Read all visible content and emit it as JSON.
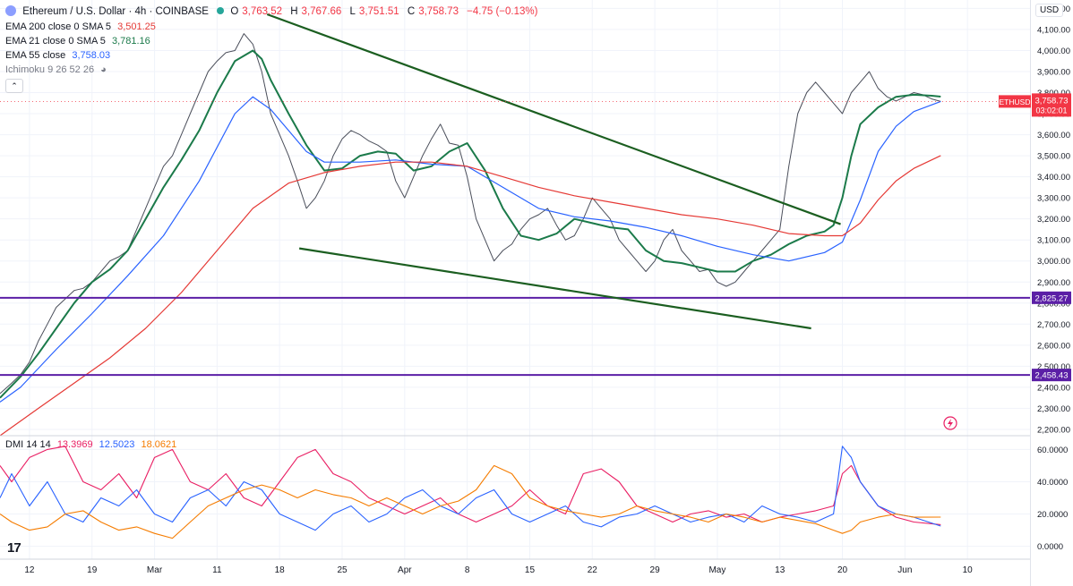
{
  "header": {
    "symbol": "Ethereum / U.S. Dollar · 4h · COINBASE",
    "open_label": "O",
    "open": "3,763.52",
    "high_label": "H",
    "high": "3,767.66",
    "low_label": "L",
    "low": "3,751.51",
    "close_label": "C",
    "close": "3,758.73",
    "change": "−4.75 (−0.13%)"
  },
  "indicators": {
    "ema200": {
      "label": "EMA 200 close 0 SMA 5",
      "value": "3,501.25",
      "color": "#e53935"
    },
    "ema21": {
      "label": "EMA 21 close 0 SMA 5",
      "value": "3,781.16",
      "color": "#1b7a4a"
    },
    "ema55": {
      "label": "EMA 55 close",
      "value": "3,758.03",
      "color": "#2962ff"
    },
    "ichimoku": {
      "label": "Ichimoku 9 26 52 26"
    }
  },
  "dmi": {
    "label": "DMI 14 14",
    "plus": "13.3969",
    "minus": "12.5023",
    "adx": "18.0621",
    "colors": {
      "plus": "#e91e63",
      "minus": "#2962ff",
      "adx": "#f57c00"
    }
  },
  "currency": "USD",
  "price_tag": {
    "symbol": "ETHUSD",
    "price": "3,758.73",
    "countdown": "03:02:01",
    "color": "#f23645"
  },
  "level_tags": [
    "2,825.27",
    "2,458.43"
  ],
  "level_color": "#5b1fa6",
  "chart_data": [
    {
      "type": "line",
      "title": "Ethereum / U.S. Dollar · 4h · COINBASE",
      "y_axis_labels": [
        "4,200.00",
        "4,100.00",
        "4,000.00",
        "3,900.00",
        "3,800.00",
        "3,700.00",
        "3,600.00",
        "3,500.00",
        "3,400.00",
        "3,300.00",
        "3,200.00",
        "3,100.00",
        "3,000.00",
        "2,900.00",
        "2,800.00",
        "2,700.00",
        "2,600.00",
        "2,500.00",
        "2,400.00",
        "2,300.00",
        "2,200.00"
      ],
      "y_ticks": [
        4200,
        4100,
        4000,
        3900,
        3800,
        3700,
        3600,
        3500,
        3400,
        3300,
        3200,
        3100,
        3000,
        2900,
        2800,
        2700,
        2600,
        2500,
        2400,
        2300,
        2200
      ],
      "ylim": [
        2170,
        4240
      ],
      "x_labels": [
        "12",
        "19",
        "Mar",
        "11",
        "18",
        "25",
        "Apr",
        "8",
        "15",
        "22",
        "29",
        "May",
        "13",
        "20",
        "Jun",
        "10"
      ],
      "x_ticks": [
        11,
        18,
        25,
        32,
        39,
        46,
        53,
        60,
        67,
        74,
        81,
        88,
        95,
        102,
        109,
        116
      ],
      "xlim": [
        7.7,
        123
      ],
      "horizontal_levels": [
        2825.27,
        2458.43
      ],
      "trendlines": [
        {
          "from": [
            37.6,
            4172
          ],
          "to": [
            101.8,
            3175
          ]
        },
        {
          "from": [
            41.2,
            3060
          ],
          "to": [
            98.5,
            2680
          ]
        }
      ],
      "series": [
        {
          "name": "close",
          "x": [
            7.7,
            9,
            10,
            11,
            12,
            13,
            14,
            15,
            16,
            17,
            18,
            19,
            20,
            21,
            22,
            23,
            24,
            25,
            26,
            27,
            28,
            29,
            30,
            31,
            32,
            33,
            34,
            35,
            36,
            37,
            38,
            39,
            40,
            41,
            42,
            43,
            44,
            45,
            46,
            47,
            48,
            49,
            50,
            51,
            52,
            53,
            54,
            55,
            56,
            57,
            58,
            59,
            60,
            61,
            62,
            63,
            64,
            65,
            66,
            67,
            68,
            69,
            70,
            71,
            72,
            73,
            74,
            75,
            76,
            77,
            78,
            79,
            80,
            81,
            82,
            83,
            84,
            85,
            86,
            87,
            88,
            89,
            90,
            91,
            92,
            93,
            94,
            95,
            96,
            97,
            98,
            99,
            100,
            101,
            102,
            103,
            104,
            105,
            106,
            107,
            108,
            109,
            110,
            111,
            112,
            113
          ],
          "y": [
            2370,
            2420,
            2460,
            2520,
            2620,
            2700,
            2780,
            2820,
            2860,
            2870,
            2900,
            2950,
            3000,
            3020,
            3050,
            3150,
            3250,
            3350,
            3450,
            3500,
            3600,
            3700,
            3800,
            3900,
            3950,
            3990,
            4000,
            4080,
            4030,
            3900,
            3700,
            3600,
            3500,
            3380,
            3250,
            3300,
            3380,
            3500,
            3580,
            3620,
            3600,
            3570,
            3550,
            3520,
            3380,
            3300,
            3400,
            3500,
            3580,
            3650,
            3560,
            3550,
            3400,
            3200,
            3100,
            3000,
            3050,
            3080,
            3150,
            3200,
            3220,
            3250,
            3170,
            3100,
            3120,
            3200,
            3300,
            3250,
            3200,
            3100,
            3050,
            3000,
            2950,
            3000,
            3100,
            3150,
            3050,
            3000,
            2950,
            2960,
            2900,
            2880,
            2900,
            2950,
            3000,
            3050,
            3100,
            3150,
            3450,
            3700,
            3800,
            3850,
            3800,
            3750,
            3700,
            3800,
            3850,
            3900,
            3820,
            3780,
            3760,
            3780,
            3800,
            3790,
            3770,
            3758
          ]
        },
        {
          "name": "EMA 21",
          "x": [
            7.7,
            10,
            12,
            14,
            16,
            18,
            20,
            22,
            24,
            26,
            28,
            30,
            32,
            34,
            36,
            37,
            38,
            40,
            42,
            44,
            46,
            48,
            50,
            52,
            54,
            56,
            58,
            60,
            62,
            64,
            66,
            68,
            70,
            72,
            74,
            76,
            78,
            80,
            82,
            84,
            86,
            88,
            90,
            92,
            94,
            96,
            98,
            100,
            101,
            102,
            103,
            104,
            106,
            108,
            110,
            112,
            113
          ],
          "y": [
            2350,
            2450,
            2560,
            2680,
            2800,
            2900,
            2960,
            3050,
            3200,
            3350,
            3480,
            3620,
            3800,
            3950,
            4000,
            3960,
            3860,
            3700,
            3550,
            3430,
            3440,
            3500,
            3520,
            3510,
            3430,
            3450,
            3520,
            3560,
            3430,
            3250,
            3120,
            3100,
            3130,
            3200,
            3180,
            3160,
            3150,
            3050,
            3000,
            2990,
            2970,
            2950,
            2950,
            3000,
            3030,
            3080,
            3120,
            3140,
            3170,
            3300,
            3500,
            3650,
            3730,
            3780,
            3790,
            3785,
            3781
          ]
        },
        {
          "name": "EMA 55",
          "x": [
            7.7,
            10,
            14,
            18,
            22,
            26,
            30,
            34,
            36,
            38,
            40,
            42,
            44,
            48,
            52,
            56,
            60,
            64,
            68,
            72,
            76,
            80,
            84,
            88,
            92,
            96,
            100,
            102,
            104,
            106,
            108,
            110,
            113
          ],
          "y": [
            2330,
            2400,
            2580,
            2750,
            2930,
            3120,
            3380,
            3700,
            3780,
            3720,
            3620,
            3520,
            3470,
            3470,
            3480,
            3460,
            3450,
            3350,
            3250,
            3210,
            3190,
            3160,
            3120,
            3070,
            3030,
            3000,
            3040,
            3090,
            3290,
            3520,
            3640,
            3710,
            3758
          ]
        },
        {
          "name": "EMA 200",
          "x": [
            7.7,
            12,
            16,
            20,
            24,
            28,
            32,
            36,
            40,
            44,
            48,
            52,
            56,
            60,
            64,
            68,
            72,
            76,
            80,
            84,
            88,
            92,
            96,
            100,
            102,
            104,
            106,
            108,
            110,
            113
          ],
          "y": [
            2170,
            2300,
            2420,
            2540,
            2680,
            2850,
            3050,
            3250,
            3370,
            3420,
            3450,
            3470,
            3470,
            3450,
            3400,
            3350,
            3310,
            3280,
            3250,
            3220,
            3200,
            3170,
            3130,
            3120,
            3120,
            3180,
            3290,
            3380,
            3440,
            3501
          ]
        }
      ]
    },
    {
      "type": "line",
      "title": "DMI 14 14",
      "y_axis_labels": [
        "60.0000",
        "40.0000",
        "20.0000",
        "0.0000"
      ],
      "y_ticks": [
        60,
        40,
        20,
        0
      ],
      "ylim": [
        -8,
        68
      ],
      "series": [
        {
          "name": "+DI",
          "x": [
            7.7,
            9,
            11,
            13,
            15,
            17,
            19,
            21,
            23,
            25,
            27,
            29,
            31,
            33,
            35,
            37,
            39,
            41,
            43,
            45,
            47,
            49,
            51,
            53,
            55,
            57,
            59,
            61,
            63,
            65,
            67,
            69,
            71,
            73,
            75,
            77,
            79,
            81,
            83,
            85,
            87,
            89,
            91,
            93,
            95,
            97,
            99,
            101,
            102,
            103,
            104,
            106,
            108,
            110,
            113
          ],
          "y": [
            50,
            40,
            55,
            60,
            62,
            40,
            35,
            45,
            30,
            55,
            60,
            40,
            35,
            45,
            30,
            25,
            40,
            55,
            60,
            45,
            40,
            30,
            25,
            20,
            25,
            30,
            20,
            15,
            20,
            25,
            35,
            25,
            20,
            45,
            48,
            40,
            25,
            20,
            15,
            20,
            22,
            18,
            20,
            15,
            18,
            20,
            22,
            25,
            45,
            50,
            40,
            25,
            18,
            15,
            13.4
          ]
        },
        {
          "name": "−DI",
          "x": [
            7.7,
            9,
            11,
            13,
            15,
            17,
            19,
            21,
            23,
            25,
            27,
            29,
            31,
            33,
            35,
            37,
            39,
            41,
            43,
            45,
            47,
            49,
            51,
            53,
            55,
            57,
            59,
            61,
            63,
            65,
            67,
            69,
            71,
            73,
            75,
            77,
            79,
            81,
            83,
            85,
            87,
            89,
            91,
            93,
            95,
            97,
            99,
            101,
            102,
            103,
            104,
            106,
            108,
            110,
            113
          ],
          "y": [
            30,
            45,
            25,
            40,
            20,
            15,
            30,
            25,
            35,
            20,
            15,
            30,
            35,
            25,
            40,
            35,
            20,
            15,
            10,
            20,
            25,
            15,
            20,
            30,
            35,
            25,
            20,
            30,
            35,
            20,
            15,
            20,
            25,
            15,
            12,
            18,
            20,
            25,
            20,
            15,
            18,
            20,
            15,
            25,
            20,
            18,
            15,
            20,
            62,
            55,
            40,
            25,
            20,
            18,
            12.5
          ]
        },
        {
          "name": "ADX",
          "x": [
            7.7,
            9,
            11,
            13,
            15,
            17,
            19,
            21,
            23,
            25,
            27,
            29,
            31,
            33,
            35,
            37,
            39,
            41,
            43,
            45,
            47,
            49,
            51,
            53,
            55,
            57,
            59,
            61,
            63,
            65,
            67,
            69,
            71,
            73,
            75,
            77,
            79,
            81,
            83,
            85,
            87,
            89,
            91,
            93,
            95,
            97,
            99,
            101,
            102,
            103,
            104,
            106,
            108,
            110,
            113
          ],
          "y": [
            20,
            15,
            10,
            12,
            20,
            22,
            15,
            10,
            12,
            8,
            5,
            15,
            25,
            30,
            35,
            38,
            35,
            30,
            35,
            32,
            30,
            25,
            30,
            25,
            20,
            25,
            28,
            35,
            50,
            45,
            30,
            25,
            22,
            20,
            18,
            20,
            25,
            22,
            20,
            18,
            15,
            20,
            18,
            15,
            18,
            16,
            14,
            10,
            8,
            10,
            15,
            18,
            20,
            18,
            18.1
          ]
        }
      ]
    }
  ]
}
